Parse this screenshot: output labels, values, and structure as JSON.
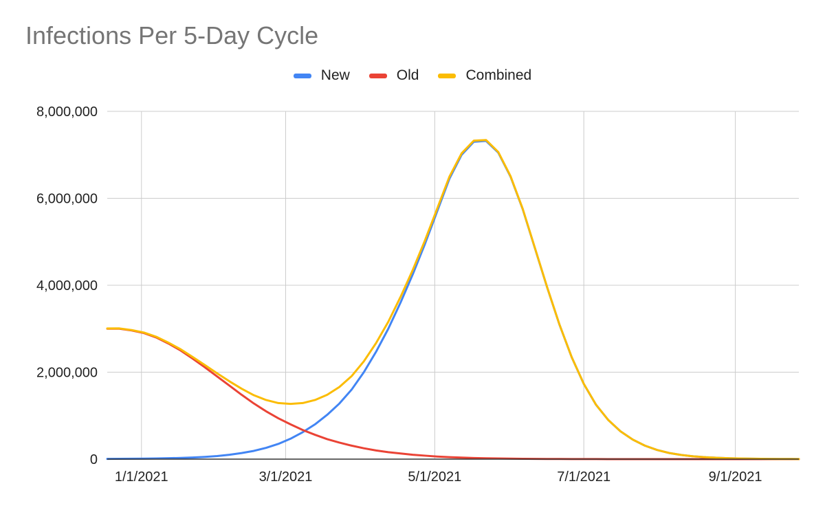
{
  "chart_data": {
    "type": "line",
    "title": "Infections Per 5-Day Cycle",
    "xlabel": "",
    "ylabel": "",
    "legend_position": "top",
    "grid": true,
    "x_axis": {
      "type": "date",
      "min": "2020-12-18",
      "max": "2021-09-27",
      "ticks": [
        "2021-01-01",
        "2021-03-01",
        "2021-05-01",
        "2021-07-01",
        "2021-09-01"
      ],
      "tick_labels": [
        "1/1/2021",
        "3/1/2021",
        "5/1/2021",
        "7/1/2021",
        "9/1/2021"
      ]
    },
    "y_axis": {
      "min": 0,
      "max": 8000000,
      "ticks": [
        0,
        2000000,
        4000000,
        6000000,
        8000000
      ],
      "tick_labels": [
        "0",
        "2,000,000",
        "4,000,000",
        "6,000,000",
        "8,000,000"
      ]
    },
    "x": [
      "2020-12-18",
      "2020-12-23",
      "2020-12-28",
      "2021-01-02",
      "2021-01-07",
      "2021-01-12",
      "2021-01-17",
      "2021-01-22",
      "2021-01-27",
      "2021-02-01",
      "2021-02-06",
      "2021-02-11",
      "2021-02-16",
      "2021-02-21",
      "2021-02-26",
      "2021-03-03",
      "2021-03-08",
      "2021-03-13",
      "2021-03-18",
      "2021-03-23",
      "2021-03-28",
      "2021-04-02",
      "2021-04-07",
      "2021-04-12",
      "2021-04-17",
      "2021-04-22",
      "2021-04-27",
      "2021-05-02",
      "2021-05-07",
      "2021-05-12",
      "2021-05-17",
      "2021-05-22",
      "2021-05-27",
      "2021-06-01",
      "2021-06-06",
      "2021-06-11",
      "2021-06-16",
      "2021-06-21",
      "2021-06-26",
      "2021-07-01",
      "2021-07-06",
      "2021-07-11",
      "2021-07-16",
      "2021-07-21",
      "2021-07-26",
      "2021-07-31",
      "2021-08-05",
      "2021-08-10",
      "2021-08-15",
      "2021-08-20",
      "2021-08-25",
      "2021-08-30",
      "2021-09-04",
      "2021-09-09",
      "2021-09-14",
      "2021-09-19",
      "2021-09-24",
      "2021-09-27"
    ],
    "series": [
      {
        "name": "New",
        "color": "#4285f4",
        "values": [
          5000,
          7000,
          9000,
          12000,
          16000,
          21000,
          28000,
          38000,
          52000,
          72000,
          100000,
          140000,
          190000,
          260000,
          350000,
          470000,
          620000,
          800000,
          1020000,
          1280000,
          1600000,
          2000000,
          2470000,
          3000000,
          3600000,
          4250000,
          4950000,
          5700000,
          6450000,
          7000000,
          7300000,
          7320000,
          7050000,
          6500000,
          5750000,
          4850000,
          3950000,
          3100000,
          2350000,
          1730000,
          1250000,
          900000,
          640000,
          450000,
          310000,
          210000,
          140000,
          95000,
          64000,
          43000,
          29000,
          19000,
          13000,
          9000,
          6000,
          4000,
          3000,
          2500
        ]
      },
      {
        "name": "Old",
        "color": "#ea4335",
        "values": [
          3000000,
          3000000,
          2960000,
          2900000,
          2800000,
          2660000,
          2500000,
          2310000,
          2110000,
          1900000,
          1690000,
          1480000,
          1280000,
          1100000,
          940000,
          800000,
          670000,
          560000,
          460000,
          380000,
          310000,
          250000,
          200000,
          160000,
          130000,
          100000,
          80000,
          60000,
          46000,
          35000,
          26000,
          20000,
          15000,
          11000,
          8000,
          6000,
          4500,
          3300,
          2400,
          1800,
          1300,
          1000,
          700,
          500,
          400,
          300,
          200,
          150,
          100,
          80,
          60,
          40,
          30,
          20,
          15,
          10,
          8,
          5
        ]
      },
      {
        "name": "Combined",
        "color": "#fbbc04",
        "values": [
          3005000,
          3007000,
          2969000,
          2912000,
          2816000,
          2681000,
          2528000,
          2348000,
          2162000,
          1972000,
          1790000,
          1620000,
          1470000,
          1360000,
          1290000,
          1270000,
          1290000,
          1360000,
          1480000,
          1660000,
          1910000,
          2250000,
          2670000,
          3160000,
          3730000,
          4350000,
          5030000,
          5760000,
          6496000,
          7035000,
          7326000,
          7340000,
          7065000,
          6511000,
          5758000,
          4856000,
          3954500,
          3103300,
          2352400,
          1731800,
          1251300,
          901000,
          640700,
          450500,
          310400,
          210300,
          140200,
          95150,
          64100,
          43080,
          29060,
          19040,
          13030,
          9020,
          6015,
          4010,
          3008,
          2505
        ]
      }
    ]
  }
}
